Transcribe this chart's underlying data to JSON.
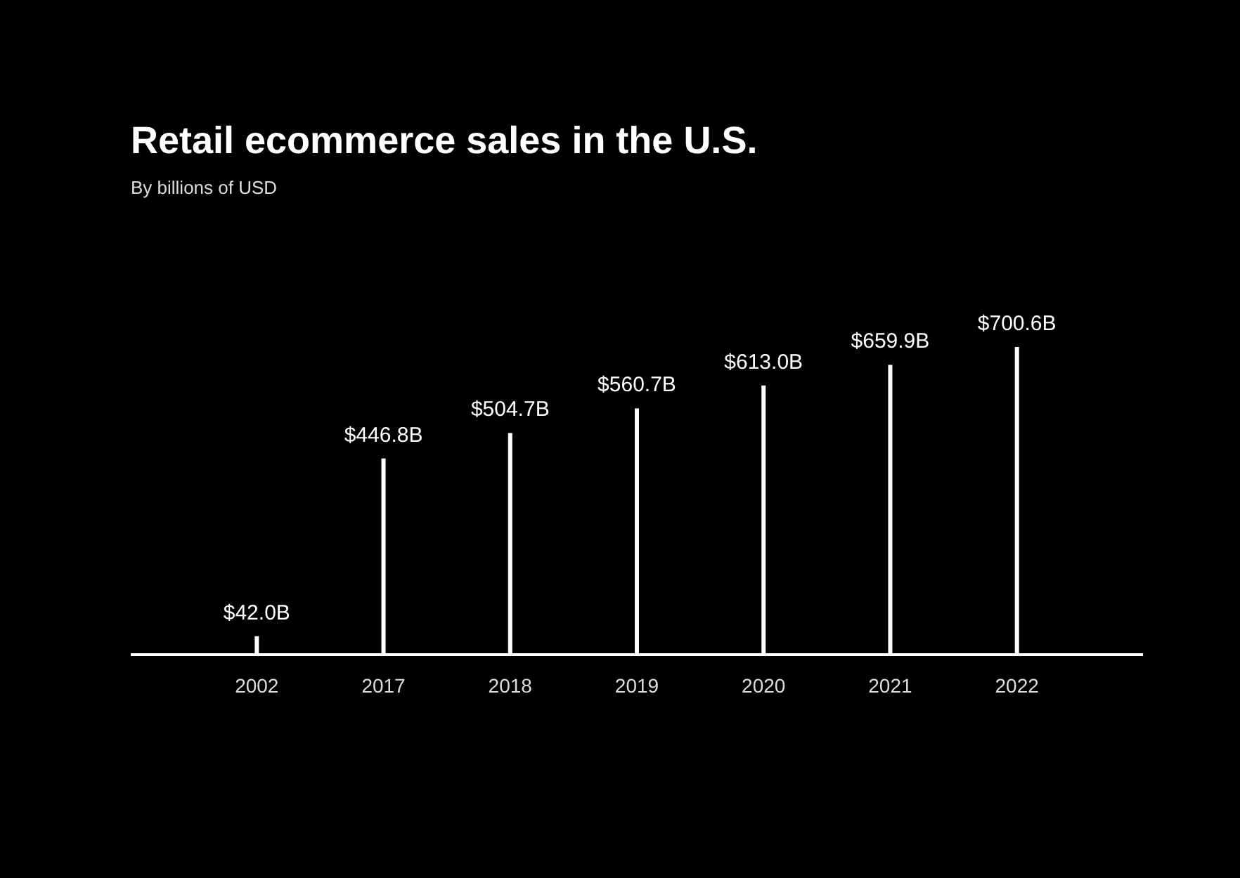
{
  "chart_data": {
    "type": "bar",
    "title": "Retail ecommerce sales in the U.S.",
    "subtitle": "By billions of USD",
    "categories": [
      "2002",
      "2017",
      "2018",
      "2019",
      "2020",
      "2021",
      "2022"
    ],
    "values": [
      42.0,
      446.8,
      504.7,
      560.7,
      613.0,
      659.9,
      700.6
    ],
    "value_labels": [
      "$42.0B",
      "$446.8B",
      "$504.7B",
      "$560.7B",
      "$613.0B",
      "$659.9B",
      "$700.6B"
    ],
    "color": "#ffffff"
  }
}
